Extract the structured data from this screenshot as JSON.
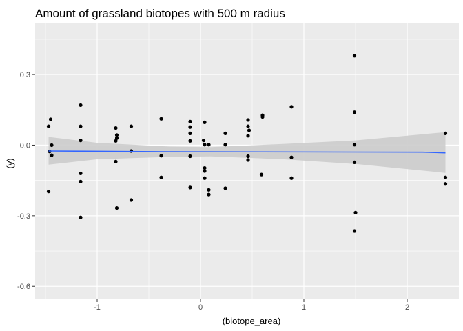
{
  "chart_data": {
    "type": "scatter",
    "title": "Amount of grassland biotopes with 500 m radius",
    "xlabel": "(biotope_area)",
    "ylabel": "(y)",
    "xlim": [
      -1.6,
      2.5
    ],
    "ylim": [
      -0.655,
      0.52
    ],
    "x_ticks": [
      -1,
      0,
      1,
      2
    ],
    "x_tick_labels": [
      "-1",
      "0",
      "1",
      "2"
    ],
    "y_ticks": [
      0.3,
      0.0,
      -0.3,
      -0.6
    ],
    "y_tick_labels": [
      "0.3",
      "0.0",
      "-0.3",
      "-0.6"
    ],
    "grid": true,
    "panel_background": "#ebebeb",
    "grid_color": "#ffffff",
    "point_color": "#000000",
    "fit_line_color": "#3366ff",
    "ribbon_color": "#cccccc",
    "points": [
      {
        "x": -1.47,
        "y": 0.08
      },
      {
        "x": -1.45,
        "y": 0.11
      },
      {
        "x": -1.44,
        "y": 0.0
      },
      {
        "x": -1.46,
        "y": -0.027
      },
      {
        "x": -1.44,
        "y": -0.043
      },
      {
        "x": -1.47,
        "y": -0.197
      },
      {
        "x": -1.16,
        "y": 0.17
      },
      {
        "x": -1.16,
        "y": 0.08
      },
      {
        "x": -1.16,
        "y": 0.02
      },
      {
        "x": -1.16,
        "y": -0.12
      },
      {
        "x": -1.16,
        "y": -0.155
      },
      {
        "x": -1.16,
        "y": -0.307
      },
      {
        "x": -0.82,
        "y": 0.073
      },
      {
        "x": -0.81,
        "y": 0.043
      },
      {
        "x": -0.81,
        "y": 0.03
      },
      {
        "x": -0.82,
        "y": 0.018
      },
      {
        "x": -0.82,
        "y": -0.07
      },
      {
        "x": -0.81,
        "y": -0.267
      },
      {
        "x": -0.67,
        "y": 0.08
      },
      {
        "x": -0.67,
        "y": -0.025
      },
      {
        "x": -0.67,
        "y": -0.233
      },
      {
        "x": -0.38,
        "y": 0.112
      },
      {
        "x": -0.38,
        "y": -0.045
      },
      {
        "x": -0.38,
        "y": -0.137
      },
      {
        "x": -0.1,
        "y": 0.1
      },
      {
        "x": -0.1,
        "y": 0.077
      },
      {
        "x": -0.1,
        "y": 0.05
      },
      {
        "x": -0.1,
        "y": 0.018
      },
      {
        "x": -0.1,
        "y": -0.047
      },
      {
        "x": -0.1,
        "y": -0.18
      },
      {
        "x": 0.04,
        "y": 0.097
      },
      {
        "x": 0.03,
        "y": 0.02
      },
      {
        "x": 0.04,
        "y": 0.002
      },
      {
        "x": 0.04,
        "y": -0.097
      },
      {
        "x": 0.04,
        "y": -0.11
      },
      {
        "x": 0.04,
        "y": -0.14
      },
      {
        "x": 0.08,
        "y": 0.002
      },
      {
        "x": 0.08,
        "y": -0.19
      },
      {
        "x": 0.08,
        "y": -0.21
      },
      {
        "x": 0.24,
        "y": 0.05
      },
      {
        "x": 0.24,
        "y": 0.002
      },
      {
        "x": 0.24,
        "y": -0.183
      },
      {
        "x": 0.46,
        "y": 0.107
      },
      {
        "x": 0.46,
        "y": 0.08
      },
      {
        "x": 0.47,
        "y": 0.063
      },
      {
        "x": 0.46,
        "y": 0.04
      },
      {
        "x": 0.46,
        "y": -0.047
      },
      {
        "x": 0.46,
        "y": -0.063
      },
      {
        "x": 0.6,
        "y": 0.127
      },
      {
        "x": 0.6,
        "y": 0.12
      },
      {
        "x": 0.59,
        "y": -0.125
      },
      {
        "x": 0.88,
        "y": 0.163
      },
      {
        "x": 0.88,
        "y": -0.052
      },
      {
        "x": 0.88,
        "y": -0.14
      },
      {
        "x": 1.49,
        "y": 0.38
      },
      {
        "x": 1.49,
        "y": 0.14
      },
      {
        "x": 1.49,
        "y": 0.002
      },
      {
        "x": 1.49,
        "y": -0.073
      },
      {
        "x": 1.5,
        "y": -0.287
      },
      {
        "x": 1.49,
        "y": -0.365
      },
      {
        "x": 2.37,
        "y": 0.05
      },
      {
        "x": 2.37,
        "y": -0.137
      },
      {
        "x": 2.37,
        "y": -0.165
      }
    ],
    "fit_line": [
      {
        "x": -1.47,
        "y": -0.025
      },
      {
        "x": -0.3,
        "y": -0.028
      },
      {
        "x": 2.15,
        "y": -0.03
      },
      {
        "x": 2.37,
        "y": -0.033
      }
    ],
    "ribbon": [
      {
        "x": -1.47,
        "ymin": -0.083,
        "ymax": 0.035
      },
      {
        "x": -1.0,
        "ymin": -0.06,
        "ymax": 0.01
      },
      {
        "x": -0.3,
        "ymin": -0.05,
        "ymax": -0.006
      },
      {
        "x": 0.1,
        "ymin": -0.048,
        "ymax": -0.008
      },
      {
        "x": 0.8,
        "ymin": -0.06,
        "ymax": 0.005
      },
      {
        "x": 1.5,
        "ymin": -0.08,
        "ymax": 0.02
      },
      {
        "x": 2.37,
        "ymin": -0.118,
        "ymax": 0.055
      }
    ]
  }
}
